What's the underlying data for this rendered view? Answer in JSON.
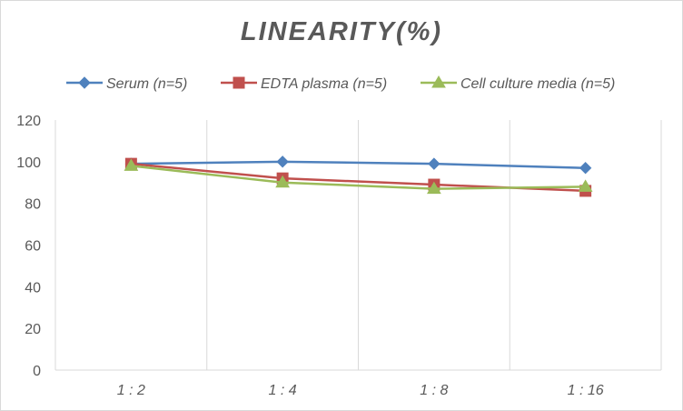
{
  "chart_data": {
    "type": "line",
    "title": "LINEARITY(%)",
    "categories": [
      "1:2",
      "1:4",
      "1:8",
      "1:16"
    ],
    "ylim": [
      0,
      120
    ],
    "y_ticks": [
      0,
      20,
      40,
      60,
      80,
      100,
      120
    ],
    "grid": {
      "vertical": true,
      "horizontal": false
    },
    "legend_position": "top",
    "series": [
      {
        "name": "Serum (n=5)",
        "values": [
          99,
          100,
          99,
          97
        ],
        "color": "#4f81bd",
        "marker": "diamond"
      },
      {
        "name": "EDTA plasma (n=5)",
        "values": [
          99,
          92,
          89,
          86
        ],
        "color": "#c0504d",
        "marker": "square"
      },
      {
        "name": "Cell culture media (n=5)",
        "values": [
          98,
          90,
          87,
          88
        ],
        "color": "#9bbb59",
        "marker": "triangle"
      }
    ]
  }
}
